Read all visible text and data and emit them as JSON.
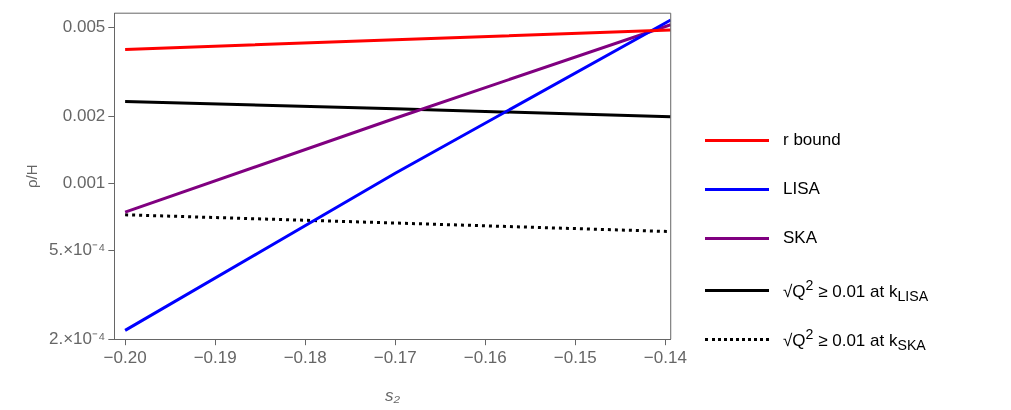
{
  "chart_data": {
    "type": "line",
    "xlabel": "s₂",
    "ylabel": "ρ/H",
    "log": "y",
    "grid": false,
    "legend": "right",
    "line_style": "solid",
    "marker": "none",
    "xlim": [
      -0.2012,
      -0.1394
    ],
    "ylim": [
      0.0002,
      0.0058
    ],
    "xticks": [
      {
        "value": -0.2,
        "label": "−0.20"
      },
      {
        "value": -0.19,
        "label": "−0.19"
      },
      {
        "value": -0.18,
        "label": "−0.18"
      },
      {
        "value": -0.17,
        "label": "−0.17"
      },
      {
        "value": -0.16,
        "label": "−0.16"
      },
      {
        "value": -0.15,
        "label": "−0.15"
      },
      {
        "value": -0.14,
        "label": "−0.14"
      }
    ],
    "yticks": [
      {
        "value": 0.0002,
        "label": "2.×10⁻⁴"
      },
      {
        "value": 0.0005,
        "label": "5.×10⁻⁴"
      },
      0.001,
      0.002,
      0.005
    ],
    "x": [
      -0.2,
      -0.17,
      -0.1394
    ],
    "series": [
      {
        "name": "r bound",
        "color": "#ff0000",
        "values": [
          0.00399,
          0.00441,
          0.00487
        ]
      },
      {
        "name": "LISA",
        "color": "#0000ff",
        "values": [
          0.000219,
          0.00111,
          0.00541
        ]
      },
      {
        "name": "SKA",
        "color": "#800080",
        "values": [
          0.000743,
          0.00196,
          0.00515
        ]
      },
      {
        "name": "√Q$^{2}$ ≥ 0.01 at k$_{LISA}$",
        "color": "#000000",
        "values": [
          0.00233,
          0.00216,
          0.00199
        ]
      },
      {
        "name": "√Q$^{2}$ ≥ 0.01 at k$_{SKA}$",
        "color": "#000000",
        "line_style": "dotted",
        "values": [
          0.000723,
          0.000664,
          0.000608
        ]
      }
    ]
  }
}
